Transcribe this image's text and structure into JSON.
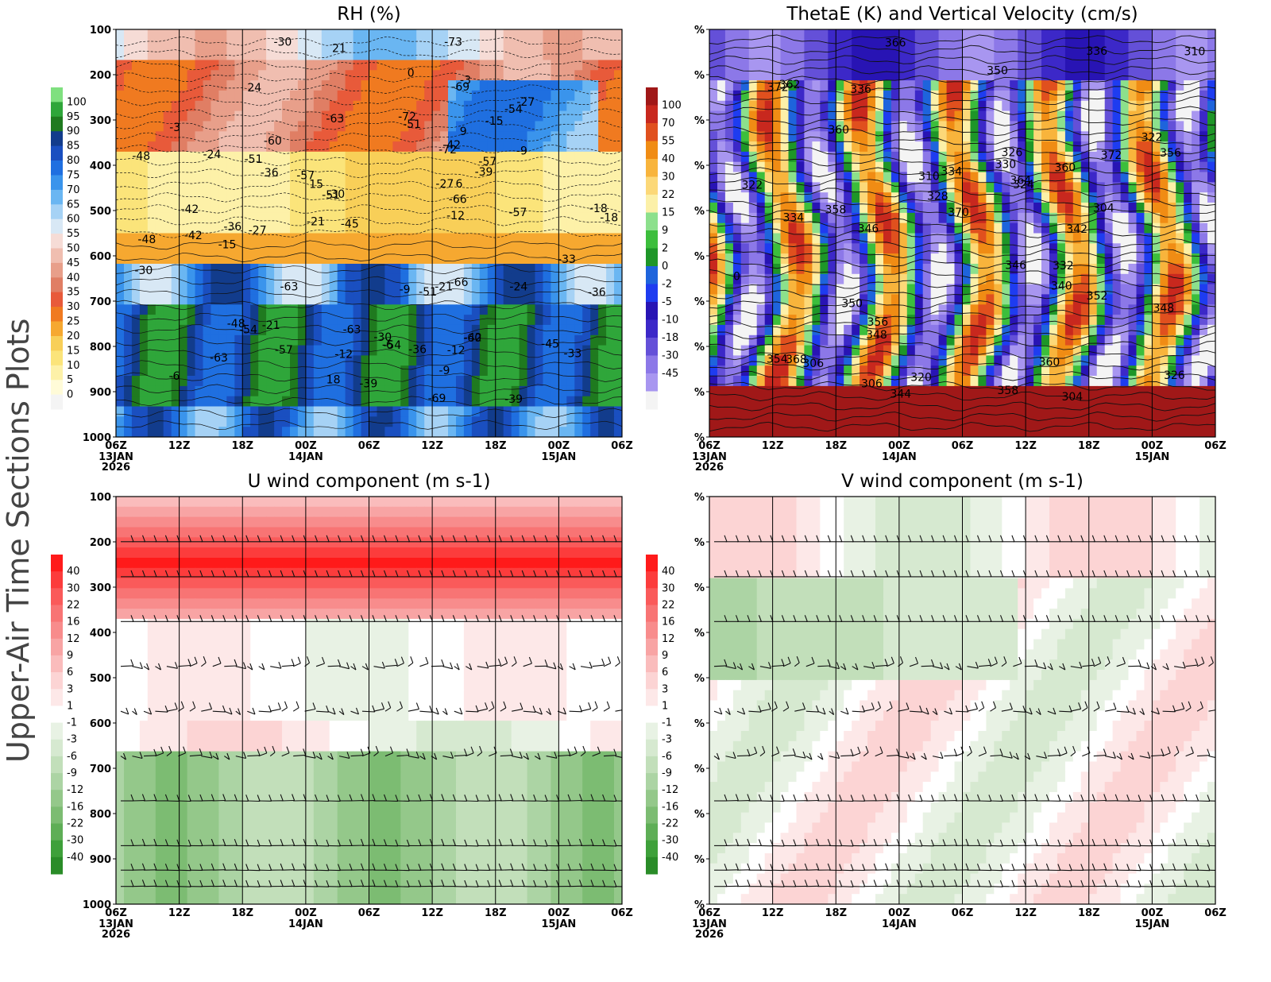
{
  "side_title": "Upper-Air Time Sections Plots",
  "chart_data": [
    {
      "id": "rh",
      "type": "heatmap",
      "title": "RH (%)",
      "y_axis_labels": [
        "100",
        "200",
        "300",
        "400",
        "500",
        "600",
        "700",
        "800",
        "900",
        "1000"
      ],
      "x_ticks": [
        "06Z",
        "12Z",
        "18Z",
        "00Z",
        "06Z",
        "12Z",
        "18Z",
        "00Z",
        "06Z"
      ],
      "x_subticks": [
        {
          "index": 0,
          "lines": [
            "13JAN",
            "2026"
          ]
        },
        {
          "index": 3,
          "lines": [
            "14JAN"
          ]
        },
        {
          "index": 7,
          "lines": [
            "15JAN"
          ]
        }
      ],
      "colorbar": {
        "labels": [
          "100",
          "95",
          "90",
          "85",
          "80",
          "75",
          "70",
          "65",
          "60",
          "55",
          "50",
          "45",
          "40",
          "35",
          "30",
          "25",
          "20",
          "15",
          "10",
          "5",
          "0"
        ],
        "colors": [
          "#7fe07f",
          "#2fa63a",
          "#1f7a1f",
          "#123c8c",
          "#1a4fc0",
          "#1f6fe0",
          "#3a94ec",
          "#6ab6f2",
          "#a6d2f5",
          "#d8e8f5",
          "#f6dcd6",
          "#f0beb0",
          "#e89f8a",
          "#e07e64",
          "#e85a3a",
          "#f07a20",
          "#f6a830",
          "#f8cf58",
          "#fbe47a",
          "#fdf1a8",
          "#fffbd8",
          "#f4f4f4"
        ]
      },
      "contour_labels": [
        "-72",
        "-69",
        "-66",
        "-63",
        "-60",
        "-57",
        "-54",
        "-51",
        "-48",
        "-45",
        "-42",
        "-39",
        "-36",
        "-33",
        "-30",
        "-27",
        "-24",
        "-21",
        "-18",
        "-15",
        "-12",
        "-9",
        "-6",
        "-3",
        "0",
        "6",
        "9",
        "15",
        "18",
        "21",
        "24",
        "-73",
        "-60",
        "-63",
        "-57",
        "-54",
        "-51",
        "-48",
        "-45",
        "-42",
        "-39",
        "-36",
        "-33",
        "-30",
        "-27",
        "-24",
        "-21",
        "-18",
        "-15",
        "-12",
        "-9",
        "-6",
        "-3",
        "-63",
        "-57",
        "-54",
        "-51",
        "-48",
        "-42",
        "-39",
        "-36",
        "-30",
        "-27",
        "-21",
        "-12",
        "-9",
        "-69",
        "-72",
        "-66",
        "-63",
        "-57",
        "-51",
        "-42",
        "-36",
        "-30"
      ]
    },
    {
      "id": "thetae",
      "type": "heatmap",
      "title": "ThetaE (K) and Vertical Velocity (cm/s)",
      "y_axis_labels": [
        "%",
        "%",
        "%",
        "%",
        "%",
        "%",
        "%",
        "%",
        "%",
        "%"
      ],
      "x_ticks": [
        "06Z",
        "12Z",
        "18Z",
        "00Z",
        "06Z",
        "12Z",
        "18Z",
        "00Z",
        "06Z"
      ],
      "x_subticks": [
        {
          "index": 0,
          "lines": [
            "13JAN",
            "2026"
          ]
        },
        {
          "index": 3,
          "lines": [
            "14JAN"
          ]
        },
        {
          "index": 7,
          "lines": [
            "15JAN"
          ]
        }
      ],
      "colorbar": {
        "labels": [
          "100",
          "70",
          "55",
          "40",
          "30",
          "22",
          "15",
          "9",
          "2",
          "0",
          "-2",
          "-5",
          "-10",
          "-18",
          "-30",
          "-45"
        ],
        "colors": [
          "#a01818",
          "#c8281e",
          "#e0501e",
          "#f08c14",
          "#f8b43c",
          "#fcd878",
          "#fcf0a8",
          "#8ce08c",
          "#3cbe3c",
          "#1e9628",
          "#1e64dc",
          "#1e3cf0",
          "#2814b4",
          "#3c28c8",
          "#6450d8",
          "#8c78e8",
          "#a896f0",
          "#f4f4f4"
        ]
      },
      "contour_labels": [
        "372",
        "370",
        "368",
        "366",
        "364",
        "372",
        "362",
        "352",
        "360",
        "358",
        "356",
        "354",
        "344",
        "360",
        "358",
        "350",
        "348",
        "346",
        "342",
        "340",
        "336",
        "336",
        "334",
        "334",
        "332",
        "330",
        "328",
        "326",
        "326",
        "324",
        "322",
        "322",
        "320",
        "310",
        "310",
        "306",
        "306",
        "304",
        "304",
        "360",
        "356",
        "346",
        "350",
        "348",
        "0"
      ]
    },
    {
      "id": "uwind",
      "type": "heatmap",
      "title": "U wind component (m s-1)",
      "y_axis_labels": [
        "100",
        "200",
        "300",
        "400",
        "500",
        "600",
        "700",
        "800",
        "900",
        "1000"
      ],
      "x_ticks": [
        "06Z",
        "12Z",
        "18Z",
        "00Z",
        "06Z",
        "12Z",
        "18Z",
        "00Z",
        "06Z"
      ],
      "x_subticks": [
        {
          "index": 0,
          "lines": [
            "13JAN",
            "2026"
          ]
        },
        {
          "index": 3,
          "lines": [
            "14JAN"
          ]
        },
        {
          "index": 7,
          "lines": [
            "15JAN"
          ]
        }
      ],
      "colorbar": {
        "labels": [
          "40",
          "30",
          "22",
          "16",
          "12",
          "9",
          "6",
          "3",
          "1",
          "-1",
          "-3",
          "-6",
          "-9",
          "-12",
          "-16",
          "-22",
          "-30",
          "-40"
        ],
        "colors": [
          "#ff1a1a",
          "#fc3c3c",
          "#fa5a5a",
          "#f87474",
          "#f88c8c",
          "#f8a4a4",
          "#fabcbc",
          "#fcd4d4",
          "#fde8e8",
          "#ffffff",
          "#e8f2e4",
          "#d6e9d0",
          "#c2dfba",
          "#acd4a4",
          "#94c88a",
          "#7cbc72",
          "#5eae56",
          "#3ea03a",
          "#2a8c28"
        ]
      }
    },
    {
      "id": "vwind",
      "type": "heatmap",
      "title": "V wind component (m s-1)",
      "y_axis_labels": [
        "%",
        "%",
        "%",
        "%",
        "%",
        "%",
        "%",
        "%",
        "%",
        "%"
      ],
      "x_ticks": [
        "06Z",
        "12Z",
        "18Z",
        "00Z",
        "06Z",
        "12Z",
        "18Z",
        "00Z",
        "06Z"
      ],
      "x_subticks": [
        {
          "index": 0,
          "lines": [
            "13JAN",
            "2026"
          ]
        },
        {
          "index": 3,
          "lines": [
            "14JAN"
          ]
        },
        {
          "index": 7,
          "lines": [
            "15JAN"
          ]
        }
      ],
      "colorbar": {
        "labels": [
          "40",
          "30",
          "22",
          "16",
          "12",
          "9",
          "6",
          "3",
          "1",
          "-1",
          "-3",
          "-6",
          "-9",
          "-12",
          "-16",
          "-22",
          "-30",
          "-40"
        ],
        "colors": [
          "#ff1a1a",
          "#fc3c3c",
          "#fa5a5a",
          "#f87474",
          "#f88c8c",
          "#f8a4a4",
          "#fabcbc",
          "#fcd4d4",
          "#fde8e8",
          "#ffffff",
          "#e8f2e4",
          "#d6e9d0",
          "#c2dfba",
          "#acd4a4",
          "#94c88a",
          "#7cbc72",
          "#5eae56",
          "#3ea03a",
          "#2a8c28"
        ]
      }
    }
  ]
}
